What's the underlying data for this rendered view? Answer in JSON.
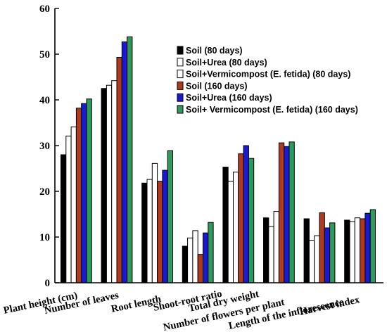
{
  "chart_data": {
    "type": "bar",
    "title": "",
    "xlabel": "",
    "ylabel": "",
    "ylim": [
      0,
      60
    ],
    "yticks": [
      0,
      10,
      20,
      30,
      40,
      50,
      60
    ],
    "grid": false,
    "legend_position": "top-right",
    "categories": [
      "Plant height (cm)",
      "Number of leaves",
      "Root length",
      "Shoot-root ratio",
      "Total dry weight",
      "Number of flowers per plant",
      "Length of the inflorescence",
      "Harvest index"
    ],
    "series": [
      {
        "name": "Soil (80 days)",
        "color": "#000000",
        "values": [
          28.0,
          42.5,
          21.8,
          8.0,
          25.3,
          14.2,
          14.0,
          13.7
        ]
      },
      {
        "name": "Soil+Urea (80 days)",
        "color": "#ffffff",
        "values": [
          32.1,
          43.2,
          22.6,
          9.8,
          22.2,
          12.3,
          9.3,
          13.4
        ]
      },
      {
        "name": "Soil+Vermicompost (E. fetida) (80 days)",
        "color": "#ffffff",
        "values": [
          34.1,
          44.2,
          26.1,
          11.4,
          24.2,
          15.6,
          10.3,
          14.2
        ]
      },
      {
        "name": "Soil (160 days)",
        "color": "#b03a1e",
        "values": [
          38.2,
          49.3,
          22.2,
          6.2,
          28.2,
          30.6,
          15.3,
          14.0
        ]
      },
      {
        "name": "Soil+Urea (160 days)",
        "color": "#1a1ad6",
        "values": [
          39.2,
          52.7,
          24.6,
          10.9,
          30.0,
          29.8,
          12.0,
          15.2
        ]
      },
      {
        "name": "Soil+ Vermicompost (E. fetida) (160 days)",
        "color": "#2e9a5c",
        "values": [
          40.2,
          53.8,
          28.9,
          13.2,
          27.2,
          30.8,
          13.1,
          16.0
        ]
      }
    ]
  }
}
